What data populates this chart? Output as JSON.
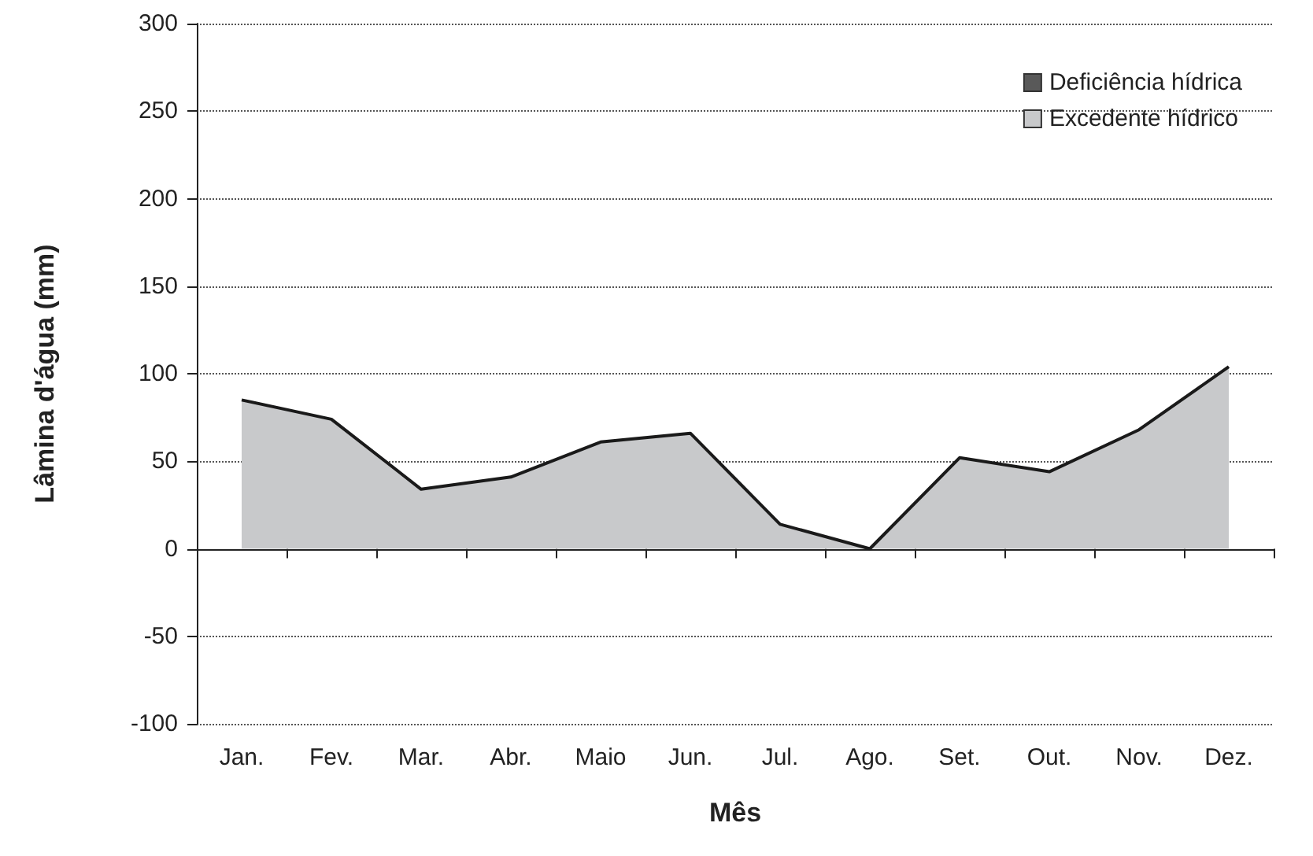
{
  "chart_data": {
    "type": "area",
    "xlabel": "Mês",
    "ylabel": "Lâmina d'água (mm)",
    "categories": [
      "Jan.",
      "Fev.",
      "Mar.",
      "Abr.",
      "Maio",
      "Jun.",
      "Jul.",
      "Ago.",
      "Set.",
      "Out.",
      "Nov.",
      "Dez."
    ],
    "series": [
      {
        "name": "Deficiência hídrica",
        "color": "#595959",
        "values": [
          null,
          null,
          null,
          null,
          null,
          null,
          null,
          null,
          null,
          null,
          null,
          null
        ]
      },
      {
        "name": "Excedente hídrico",
        "color": "#c8c9cb",
        "values": [
          85,
          74,
          34,
          41,
          61,
          66,
          14,
          0,
          52,
          44,
          68,
          104
        ]
      }
    ],
    "ylim": [
      -100,
      300
    ],
    "yticks": [
      -100,
      -50,
      0,
      50,
      100,
      150,
      200,
      250,
      300
    ],
    "grid": "y",
    "legend": "top right",
    "line_style": "solid",
    "marker": "none"
  }
}
